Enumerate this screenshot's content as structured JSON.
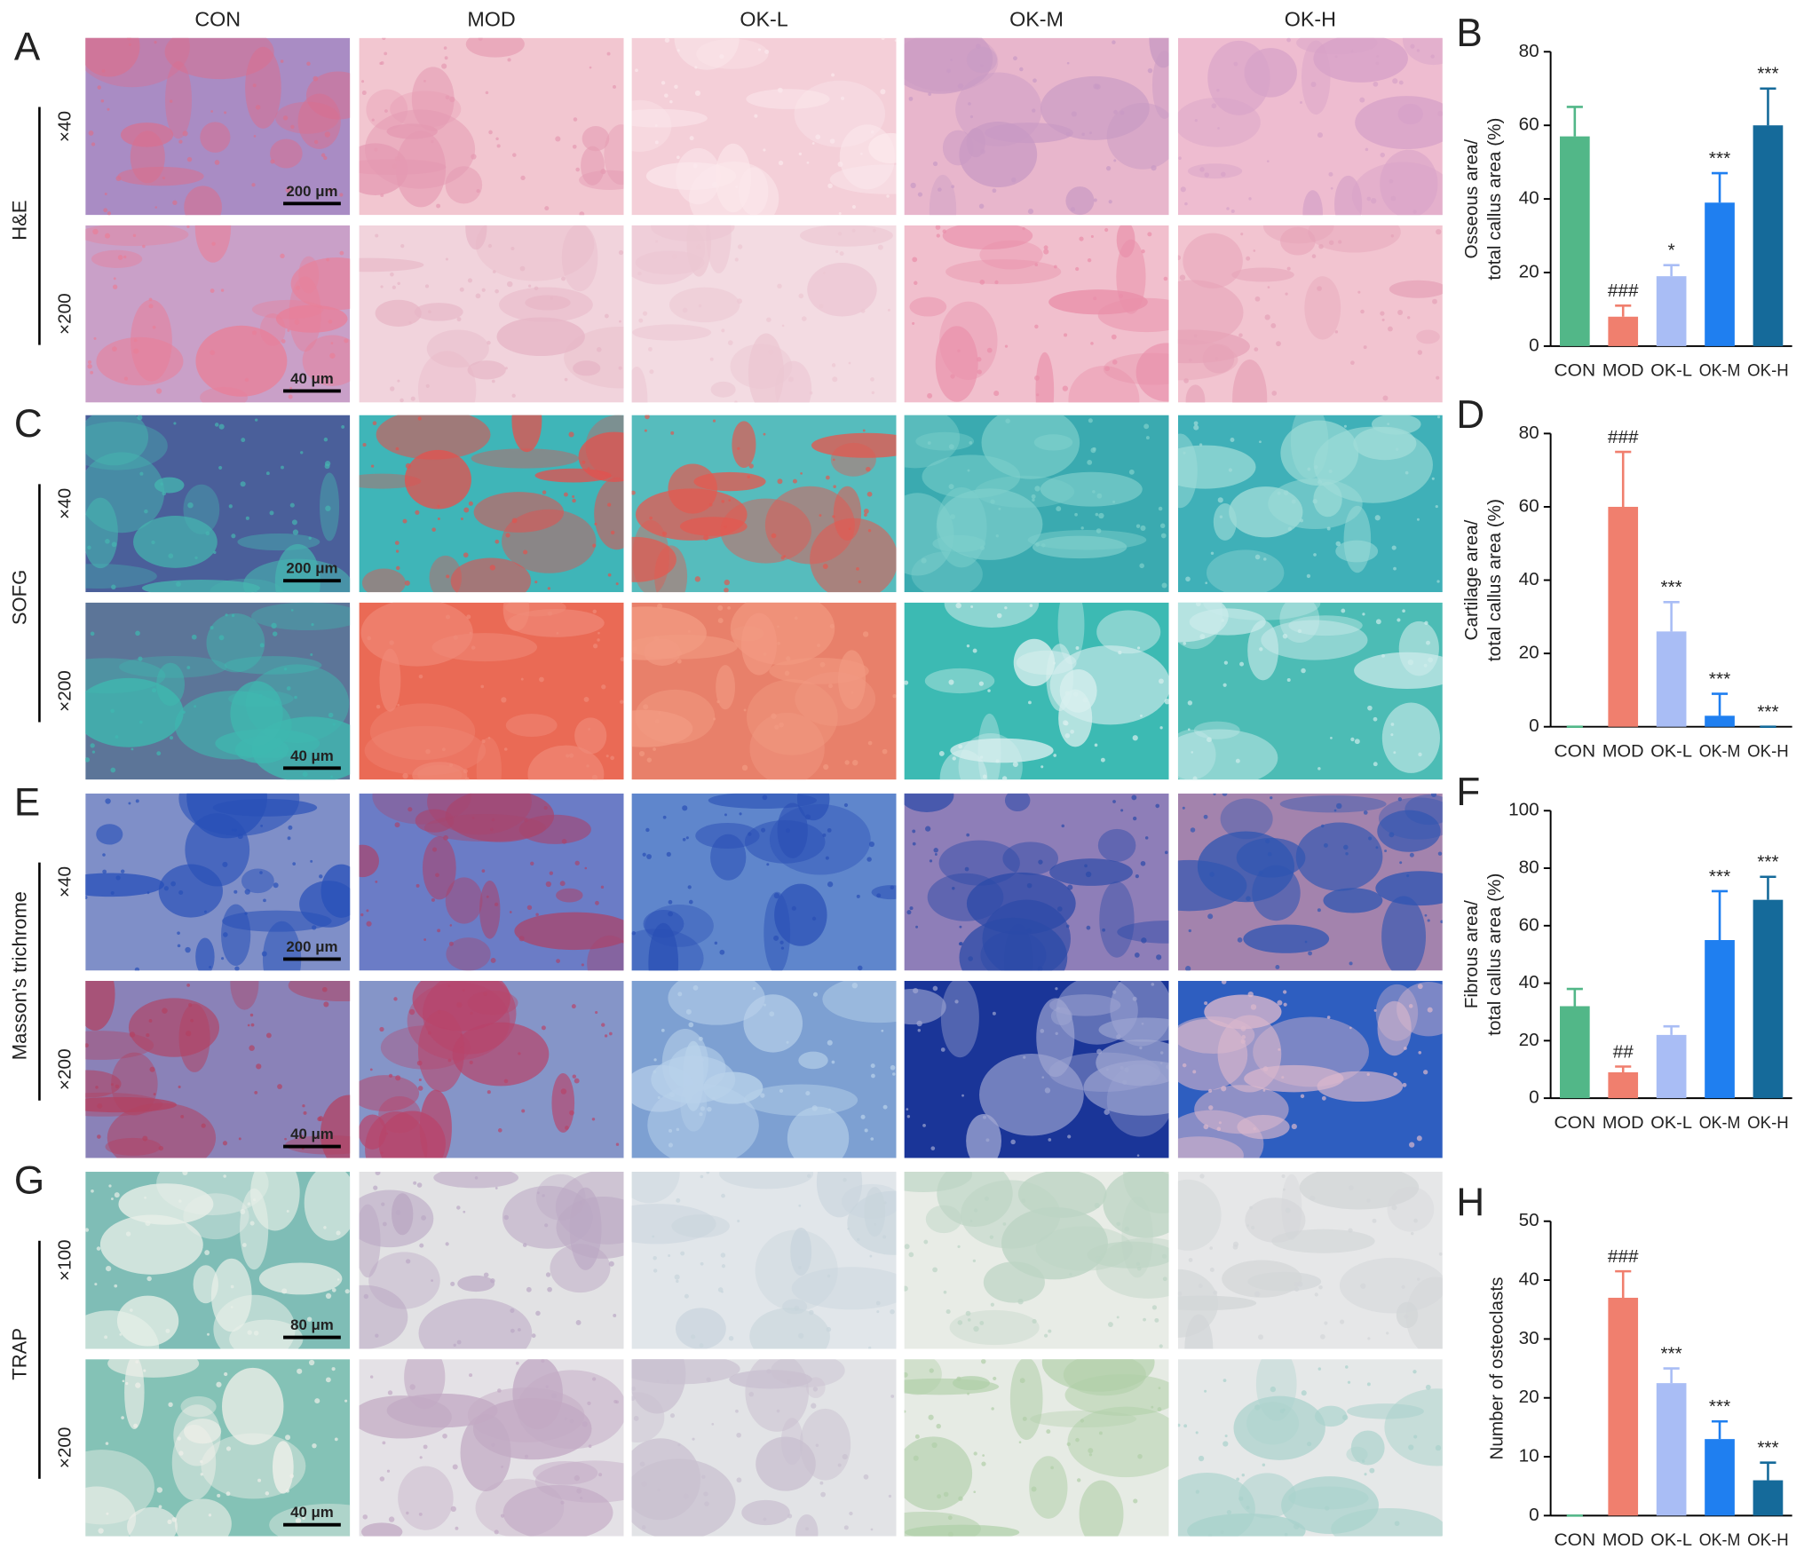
{
  "figure": {
    "columns": [
      "CON",
      "MOD",
      "OK-L",
      "OK-M",
      "OK-H"
    ],
    "sections": [
      {
        "letter": "A",
        "stain": "H&E",
        "rows": [
          {
            "magnification": "×40",
            "scale_bar": "200 μm",
            "tiles": [
              [
                "#a98cc4",
                "#d9708f"
              ],
              [
                "#f2c6d0",
                "#e59ab2"
              ],
              [
                "#f4cfd8",
                "#fbe8ec"
              ],
              [
                "#e8b6cc",
                "#c99ac4"
              ],
              [
                "#eebcd0",
                "#d7a2c8"
              ]
            ]
          },
          {
            "magnification": "×200",
            "scale_bar": "40 μm",
            "tiles": [
              [
                "#c9a0c8",
                "#e87f99"
              ],
              [
                "#f1d3dc",
                "#e7b6c6"
              ],
              [
                "#f3dbe2",
                "#ecc7d3"
              ],
              [
                "#f1bfcd",
                "#e98fa9"
              ],
              [
                "#f2c4d0",
                "#e6a3b8"
              ]
            ]
          }
        ]
      },
      {
        "letter": "C",
        "stain": "SOFG",
        "rows": [
          {
            "magnification": "×40",
            "scale_bar": "200 μm",
            "tiles": [
              [
                "#4a5f9a",
                "#46b5b0"
              ],
              [
                "#3fb5b8",
                "#e1524f"
              ],
              [
                "#56bcbd",
                "#e35950"
              ],
              [
                "#3aaab0",
                "#7fd0cc"
              ],
              [
                "#3fb0b8",
                "#9fdcd8"
              ]
            ]
          },
          {
            "magnification": "×200",
            "scale_bar": "40 μm",
            "tiles": [
              [
                "#5c7598",
                "#3fb8b0"
              ],
              [
                "#ea6a55",
                "#f08a78"
              ],
              [
                "#e8806a",
                "#f29a82"
              ],
              [
                "#3cbab3",
                "#d8efee"
              ],
              [
                "#4cbcb5",
                "#cdeceb"
              ]
            ]
          }
        ]
      },
      {
        "letter": "E",
        "stain": "Masson's trichrome",
        "rows": [
          {
            "magnification": "×40",
            "scale_bar": "200 μm",
            "tiles": [
              [
                "#7f8fc8",
                "#2850b8"
              ],
              [
                "#6b7cc6",
                "#a8456e"
              ],
              [
                "#5f86cc",
                "#2a4fb5"
              ],
              [
                "#8e7eb8",
                "#2b4aa8"
              ],
              [
                "#a383ad",
                "#2f55b2"
              ]
            ]
          },
          {
            "magnification": "×200",
            "scale_bar": "40 μm",
            "tiles": [
              [
                "#8a82b8",
                "#b24262"
              ],
              [
                "#8595c8",
                "#b8446a"
              ],
              [
                "#7da0d2",
                "#b9d2ea"
              ],
              [
                "#1a3598",
                "#9fa6d2"
              ],
              [
                "#2e5ec0",
                "#dbb8cc"
              ]
            ]
          }
        ]
      },
      {
        "letter": "G",
        "stain": "TRAP",
        "rows": [
          {
            "magnification": "×100",
            "scale_bar": "80 μm",
            "tiles": [
              [
                "#7fbdb6",
                "#e8efe8"
              ],
              [
                "#e2e2e4",
                "#bba8c4"
              ],
              [
                "#e1e6ea",
                "#c8d4dc"
              ],
              [
                "#e8ece6",
                "#bcd4c4"
              ],
              [
                "#e6e7e8",
                "#d3d6d8"
              ]
            ]
          },
          {
            "magnification": "×200",
            "scale_bar": "40 μm",
            "tiles": [
              [
                "#84c2b6",
                "#f0f0ea"
              ],
              [
                "#e4e1e6",
                "#c2aac4"
              ],
              [
                "#e2e3e6",
                "#c9c0d0"
              ],
              [
                "#e6ebe4",
                "#b0cfa8"
              ],
              [
                "#e5e8e8",
                "#a9d2cc"
              ]
            ]
          }
        ]
      }
    ]
  },
  "chart_data": [
    {
      "type": "bar",
      "panel": "B",
      "ylabel": [
        "Osseous area/",
        "total callus area (%)"
      ],
      "categories": [
        "CON",
        "MOD",
        "OK-L",
        "OK-M",
        "OK-H"
      ],
      "values": [
        57,
        8,
        19,
        39,
        60
      ],
      "errors": [
        8,
        3,
        3,
        8,
        10
      ],
      "annotations": [
        null,
        "###",
        "*",
        "***",
        "***"
      ],
      "colors": [
        "#52b788",
        "#f07f6e",
        "#a9bdf5",
        "#1f7ff0",
        "#156a9a"
      ],
      "ylim": [
        0,
        80
      ],
      "yticks": [
        0,
        20,
        40,
        60,
        80
      ]
    },
    {
      "type": "bar",
      "panel": "D",
      "ylabel": [
        "Cartilage area/",
        "total callus area (%)"
      ],
      "categories": [
        "CON",
        "MOD",
        "OK-L",
        "OK-M",
        "OK-H"
      ],
      "values": [
        0,
        60,
        26,
        3,
        0
      ],
      "errors": [
        0,
        15,
        8,
        6,
        0
      ],
      "annotations": [
        null,
        "###",
        "***",
        "***",
        "***"
      ],
      "colors": [
        "#52b788",
        "#f07f6e",
        "#a9bdf5",
        "#1f7ff0",
        "#156a9a"
      ],
      "ylim": [
        0,
        80
      ],
      "yticks": [
        0,
        20,
        40,
        60,
        80
      ]
    },
    {
      "type": "bar",
      "panel": "F",
      "ylabel": [
        "Fibrous area/",
        "total callus area (%)"
      ],
      "categories": [
        "CON",
        "MOD",
        "OK-L",
        "OK-M",
        "OK-H"
      ],
      "values": [
        32,
        9,
        22,
        55,
        69
      ],
      "errors": [
        6,
        2,
        3,
        17,
        8
      ],
      "annotations": [
        null,
        "##",
        null,
        "***",
        "***"
      ],
      "colors": [
        "#52b788",
        "#f07f6e",
        "#a9bdf5",
        "#1f7ff0",
        "#156a9a"
      ],
      "ylim": [
        0,
        100
      ],
      "yticks": [
        0,
        20,
        40,
        60,
        80,
        100
      ]
    },
    {
      "type": "bar",
      "panel": "H",
      "ylabel": [
        "Number of osteoclasts"
      ],
      "categories": [
        "CON",
        "MOD",
        "OK-L",
        "OK-M",
        "OK-H"
      ],
      "values": [
        0,
        37,
        22.5,
        13,
        6
      ],
      "errors": [
        0,
        4.5,
        2.5,
        3,
        3
      ],
      "annotations": [
        null,
        "###",
        "***",
        "***",
        "***"
      ],
      "colors": [
        "#52b788",
        "#f07f6e",
        "#a9bdf5",
        "#1f7ff0",
        "#156a9a"
      ],
      "ylim": [
        0,
        50
      ],
      "yticks": [
        0,
        10,
        20,
        30,
        40,
        50
      ]
    }
  ]
}
